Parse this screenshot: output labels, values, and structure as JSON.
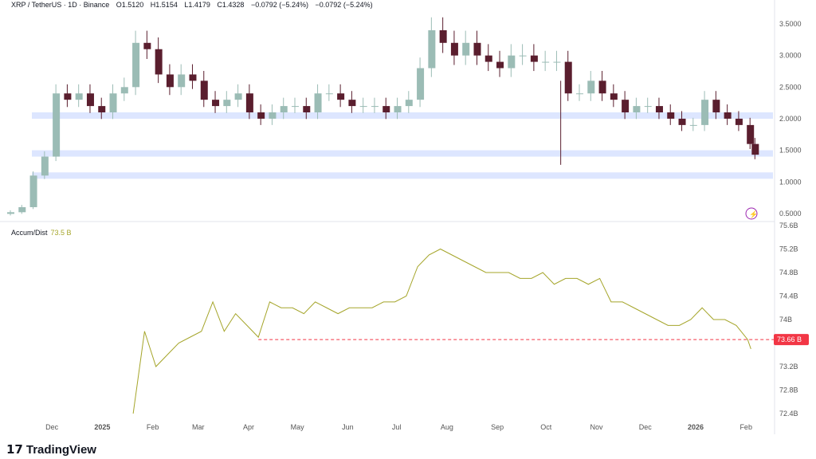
{
  "header": {
    "symbol": "XRP / TetherUS · 1D · Binance",
    "open": "O1.5120",
    "high": "H1.5154",
    "low": "L1.4179",
    "close": "C1.4328",
    "change": "−0.0792 (−5.24%)",
    "change2": "−0.0792 (−5.24%)"
  },
  "indicator": {
    "name": "Accum/Dist",
    "value": "73.5 B",
    "marker_label": "73.66 B"
  },
  "branding": {
    "logo": "TradingView"
  },
  "colors": {
    "up": "#9bbcb5",
    "down": "#5a1e2e",
    "zone": "#dde6ff",
    "ad_line": "#a5a52a",
    "marker": "#f23645"
  },
  "chart_data": [
    {
      "type": "candlestick",
      "title": "XRP / TetherUS · 1D · Binance",
      "ylim": [
        0.45,
        3.7
      ],
      "y_ticks": [
        "3.5000",
        "3.0000",
        "2.5000",
        "2.0000",
        "1.5000",
        "1.0000",
        "0.5000"
      ],
      "x_ticks": [
        "Dec",
        "2025",
        "Feb",
        "Mar",
        "Apr",
        "May",
        "Jun",
        "Jul",
        "Aug",
        "Sep",
        "Oct",
        "Nov",
        "Dec",
        "2026",
        "Feb"
      ],
      "zones": [
        2.05,
        1.45,
        1.1
      ],
      "dates": [
        "2024-11-03",
        "2024-11-10",
        "2024-11-17",
        "2024-11-24",
        "2024-12-01",
        "2024-12-08",
        "2024-12-15",
        "2024-12-22",
        "2024-12-29",
        "2025-01-05",
        "2025-01-12",
        "2025-01-19",
        "2025-01-26",
        "2025-02-02",
        "2025-02-09",
        "2025-02-16",
        "2025-02-23",
        "2025-03-02",
        "2025-03-09",
        "2025-03-16",
        "2025-03-23",
        "2025-03-30",
        "2025-04-06",
        "2025-04-13",
        "2025-04-20",
        "2025-04-27",
        "2025-05-04",
        "2025-05-11",
        "2025-05-18",
        "2025-05-25",
        "2025-06-01",
        "2025-06-08",
        "2025-06-15",
        "2025-06-22",
        "2025-06-29",
        "2025-07-06",
        "2025-07-13",
        "2025-07-20",
        "2025-07-27",
        "2025-08-03",
        "2025-08-10",
        "2025-08-17",
        "2025-08-24",
        "2025-08-31",
        "2025-09-07",
        "2025-09-14",
        "2025-09-21",
        "2025-09-28",
        "2025-10-05",
        "2025-10-12",
        "2025-10-19",
        "2025-10-26",
        "2025-11-02",
        "2025-11-09",
        "2025-11-16",
        "2025-11-23",
        "2025-11-30",
        "2025-12-07",
        "2025-12-14",
        "2025-12-21",
        "2025-12-28",
        "2026-01-04",
        "2026-01-11",
        "2026-01-18",
        "2026-01-25",
        "2026-02-01",
        "2026-02-04"
      ],
      "close": [
        0.52,
        0.6,
        1.1,
        1.4,
        2.4,
        2.3,
        2.4,
        2.2,
        2.1,
        2.4,
        2.5,
        3.2,
        3.1,
        2.7,
        2.5,
        2.7,
        2.6,
        2.3,
        2.2,
        2.3,
        2.4,
        2.1,
        2.0,
        2.1,
        2.2,
        2.2,
        2.1,
        2.4,
        2.4,
        2.3,
        2.2,
        2.2,
        2.2,
        2.1,
        2.2,
        2.3,
        2.8,
        3.4,
        3.2,
        3.0,
        3.2,
        3.0,
        2.9,
        2.8,
        3.0,
        3.0,
        2.9,
        2.9,
        2.9,
        2.4,
        2.4,
        2.6,
        2.4,
        2.3,
        2.1,
        2.2,
        2.2,
        2.1,
        2.0,
        1.9,
        1.9,
        2.3,
        2.1,
        2.0,
        1.9,
        1.6,
        1.43
      ]
    },
    {
      "type": "line",
      "title": "Accum/Dist",
      "ylim": [
        72.2,
        75.7
      ],
      "y_ticks": [
        "75.6B",
        "75.2B",
        "74.8B",
        "74.4B",
        "74B",
        "73.2B",
        "72.8B",
        "72.4B"
      ],
      "dates": [
        "2025-01-20",
        "2025-01-27",
        "2025-02-03",
        "2025-02-10",
        "2025-02-17",
        "2025-02-24",
        "2025-03-03",
        "2025-03-10",
        "2025-03-17",
        "2025-03-24",
        "2025-03-31",
        "2025-04-07",
        "2025-04-14",
        "2025-04-21",
        "2025-04-28",
        "2025-05-05",
        "2025-05-12",
        "2025-05-19",
        "2025-05-26",
        "2025-06-02",
        "2025-06-09",
        "2025-06-16",
        "2025-06-23",
        "2025-06-30",
        "2025-07-07",
        "2025-07-14",
        "2025-07-21",
        "2025-07-28",
        "2025-08-04",
        "2025-08-11",
        "2025-08-18",
        "2025-08-25",
        "2025-09-01",
        "2025-09-08",
        "2025-09-15",
        "2025-09-22",
        "2025-09-29",
        "2025-10-06",
        "2025-10-13",
        "2025-10-20",
        "2025-10-27",
        "2025-11-03",
        "2025-11-10",
        "2025-11-17",
        "2025-11-24",
        "2025-12-01",
        "2025-12-08",
        "2025-12-15",
        "2025-12-22",
        "2025-12-29",
        "2026-01-05",
        "2026-01-12",
        "2026-01-19",
        "2026-01-26",
        "2026-02-02",
        "2026-02-04"
      ],
      "values": [
        72.4,
        73.8,
        73.2,
        73.4,
        73.6,
        73.7,
        73.8,
        74.3,
        73.8,
        74.1,
        73.9,
        73.7,
        74.3,
        74.2,
        74.2,
        74.1,
        74.3,
        74.2,
        74.1,
        74.2,
        74.2,
        74.2,
        74.3,
        74.3,
        74.4,
        74.9,
        75.1,
        75.2,
        75.1,
        75.0,
        74.9,
        74.8,
        74.8,
        74.8,
        74.7,
        74.7,
        74.8,
        74.6,
        74.7,
        74.7,
        74.6,
        74.7,
        74.3,
        74.3,
        74.2,
        74.1,
        74.0,
        73.9,
        73.9,
        74.0,
        74.2,
        74.0,
        74.0,
        73.9,
        73.66,
        73.5
      ],
      "reference_line": 73.66
    }
  ]
}
